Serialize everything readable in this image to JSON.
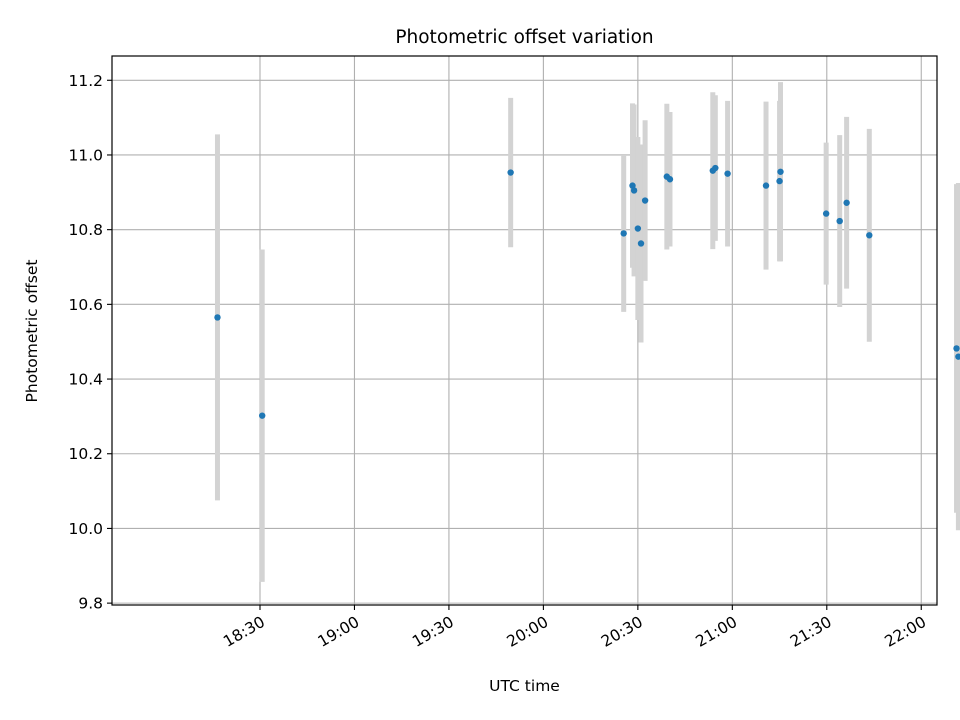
{
  "chart_data": {
    "type": "scatter",
    "title": "Photometric offset variation",
    "xlabel": "UTC time",
    "ylabel": "Photometric offset",
    "grid": true,
    "x_unit": "minutes since 00:00 UTC",
    "xlim": [
      1063,
      1325
    ],
    "ylim": [
      9.795,
      11.265
    ],
    "x_ticks": [
      {
        "value": 1110,
        "label": "18:30"
      },
      {
        "value": 1140,
        "label": "19:00"
      },
      {
        "value": 1170,
        "label": "19:30"
      },
      {
        "value": 1200,
        "label": "20:00"
      },
      {
        "value": 1230,
        "label": "20:30"
      },
      {
        "value": 1260,
        "label": "21:00"
      },
      {
        "value": 1290,
        "label": "21:30"
      },
      {
        "value": 1320,
        "label": "22:00"
      }
    ],
    "y_ticks": [
      {
        "value": 9.8,
        "label": "9.8"
      },
      {
        "value": 10.0,
        "label": "10.0"
      },
      {
        "value": 10.2,
        "label": "10.2"
      },
      {
        "value": 10.4,
        "label": "10.4"
      },
      {
        "value": 10.6,
        "label": "10.6"
      },
      {
        "value": 10.8,
        "label": "10.8"
      },
      {
        "value": 11.0,
        "label": "11.0"
      },
      {
        "value": 11.2,
        "label": "11.2"
      }
    ],
    "series": [
      {
        "name": "Photometric offset",
        "point_color": "#1f77b4",
        "errorbar_color": "#d3d3d3",
        "points": [
          {
            "x": 1096.5,
            "y": 10.565,
            "err": 0.49
          },
          {
            "x": 1110.7,
            "y": 10.302,
            "err": 0.445
          },
          {
            "x": 1189.6,
            "y": 10.953,
            "err": 0.2
          },
          {
            "x": 1225.5,
            "y": 10.79,
            "err": 0.21
          },
          {
            "x": 1228.3,
            "y": 10.918,
            "err": 0.22
          },
          {
            "x": 1228.8,
            "y": 10.905,
            "err": 0.23
          },
          {
            "x": 1230.0,
            "y": 10.803,
            "err": 0.245
          },
          {
            "x": 1231.0,
            "y": 10.763,
            "err": 0.265
          },
          {
            "x": 1232.3,
            "y": 10.878,
            "err": 0.215
          },
          {
            "x": 1239.2,
            "y": 10.942,
            "err": 0.195
          },
          {
            "x": 1240.2,
            "y": 10.935,
            "err": 0.18
          },
          {
            "x": 1253.8,
            "y": 10.958,
            "err": 0.21
          },
          {
            "x": 1254.6,
            "y": 10.965,
            "err": 0.195
          },
          {
            "x": 1258.5,
            "y": 10.95,
            "err": 0.195
          },
          {
            "x": 1270.7,
            "y": 10.918,
            "err": 0.225
          },
          {
            "x": 1275.0,
            "y": 10.93,
            "err": 0.215
          },
          {
            "x": 1275.3,
            "y": 10.955,
            "err": 0.24
          },
          {
            "x": 1289.8,
            "y": 10.843,
            "err": 0.19
          },
          {
            "x": 1294.1,
            "y": 10.823,
            "err": 0.23
          },
          {
            "x": 1296.3,
            "y": 10.872,
            "err": 0.23
          },
          {
            "x": 1303.5,
            "y": 10.785,
            "err": 0.285
          },
          {
            "x": 1331.2,
            "y": 10.482,
            "err": 0.44
          },
          {
            "x": 1331.8,
            "y": 10.46,
            "err": 0.465
          }
        ]
      }
    ]
  }
}
